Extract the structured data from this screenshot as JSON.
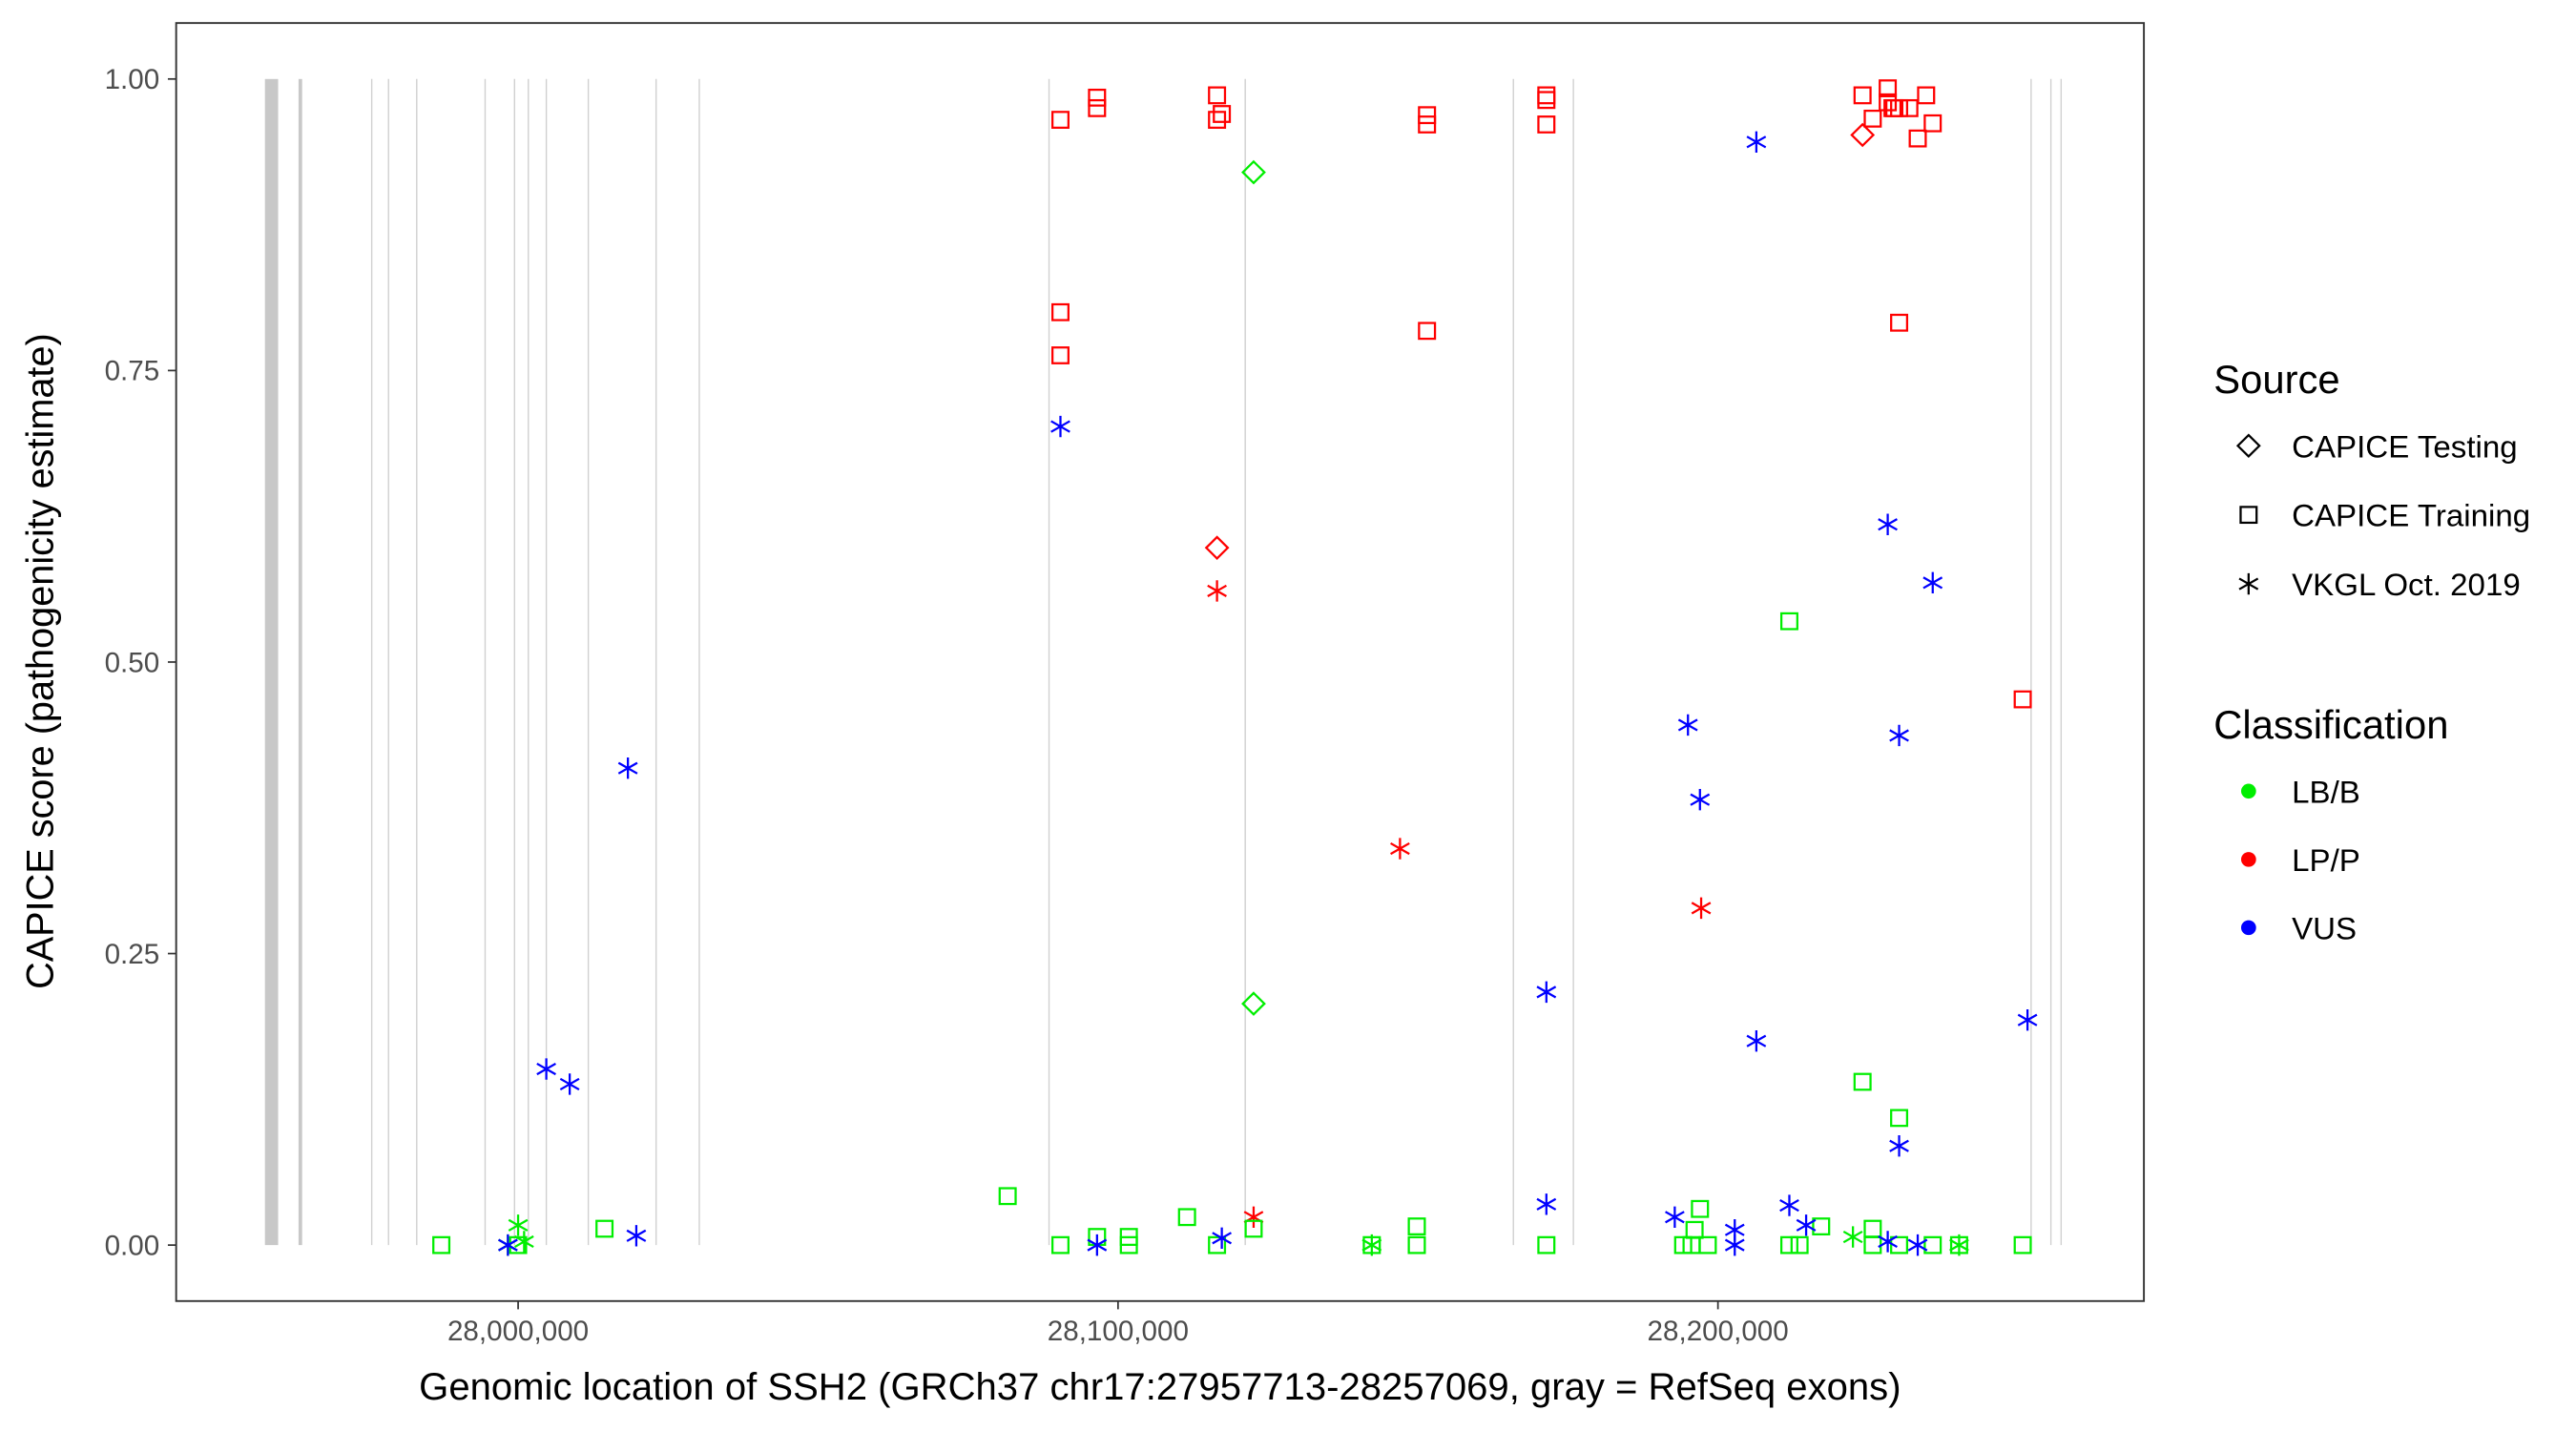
{
  "chart_data": {
    "type": "scatter",
    "xlabel": "Genomic location of SSH2 (GRCh37 chr17:27957713-28257069, gray = RefSeq exons)",
    "ylabel": "CAPICE score (pathogenicity estimate)",
    "xlim": [
      27943000,
      28271000
    ],
    "ylim": [
      -0.048,
      1.048
    ],
    "grid": false,
    "xticks": [
      28000000,
      28100000,
      28200000
    ],
    "xtick_labels": [
      "28,000,000",
      "28,100,000",
      "28,200,000"
    ],
    "yticks": [
      0,
      0.25,
      0.5,
      0.75,
      1.0
    ],
    "ytick_labels": [
      "0.00",
      "0.25",
      "0.50",
      "0.75",
      "1.00"
    ],
    "exons": [
      [
        27957800,
        27960000
      ],
      [
        27963400,
        27964000
      ],
      27975600,
      27978400,
      27983100,
      27994500,
      27999400,
      28001700,
      28004700,
      28011700,
      28023000,
      28030200,
      28088500,
      28121200,
      28165900,
      28175900,
      28252200,
      28255500,
      28257200
    ],
    "legend_placement": "right",
    "legend": {
      "source_title": "Source",
      "sources": [
        {
          "key": "testing",
          "label": "CAPICE Testing",
          "shape": "diamond"
        },
        {
          "key": "training",
          "label": "CAPICE Training",
          "shape": "square"
        },
        {
          "key": "vkgl",
          "label": "VKGL Oct. 2019",
          "shape": "asterisk"
        }
      ],
      "class_title": "Classification",
      "classes": [
        {
          "key": "LB/B",
          "label": "LB/B",
          "color": "#00ee00"
        },
        {
          "key": "LP/P",
          "label": "LP/P",
          "color": "#ff0000"
        },
        {
          "key": "VUS",
          "label": "VUS",
          "color": "#0000ff"
        }
      ]
    },
    "series": [
      {
        "source": "training",
        "class": "LP/P",
        "points": [
          [
            28090400,
            0.965
          ],
          [
            28096500,
            0.984
          ],
          [
            28096500,
            0.975
          ],
          [
            28116500,
            0.986
          ],
          [
            28116500,
            0.965
          ],
          [
            28117300,
            0.97
          ],
          [
            28151500,
            0.969
          ],
          [
            28151500,
            0.961
          ],
          [
            28171400,
            0.986
          ],
          [
            28171400,
            0.982
          ],
          [
            28171400,
            0.961
          ],
          [
            28090400,
            0.8
          ],
          [
            28090400,
            0.763
          ],
          [
            28151500,
            0.784
          ],
          [
            28224100,
            0.986
          ],
          [
            28225800,
            0.966
          ],
          [
            28228300,
            0.992
          ],
          [
            28228300,
            0.98
          ],
          [
            28229100,
            0.975
          ],
          [
            28229400,
            0.975
          ],
          [
            28230200,
            0.975
          ],
          [
            28231900,
            0.975
          ],
          [
            28234700,
            0.986
          ],
          [
            28233300,
            0.949
          ],
          [
            28235800,
            0.962
          ],
          [
            28230200,
            0.791
          ],
          [
            28250800,
            0.468
          ]
        ]
      },
      {
        "source": "testing",
        "class": "LP/P",
        "points": [
          [
            28224100,
            0.952
          ],
          [
            28116500,
            0.598
          ]
        ]
      },
      {
        "source": "vkgl",
        "class": "LP/P",
        "points": [
          [
            28116500,
            0.561
          ],
          [
            28147000,
            0.34
          ],
          [
            28197200,
            0.289
          ],
          [
            28122600,
            0.024
          ]
        ]
      },
      {
        "source": "testing",
        "class": "LB/B",
        "points": [
          [
            28122600,
            0.92
          ],
          [
            28122600,
            0.207
          ]
        ]
      },
      {
        "source": "training",
        "class": "LB/B",
        "points": [
          [
            27987200,
            0
          ],
          [
            28000000,
            0
          ],
          [
            28014400,
            0.014
          ],
          [
            28081600,
            0.042
          ],
          [
            28090400,
            0
          ],
          [
            28096500,
            0.007
          ],
          [
            28101800,
            0.007
          ],
          [
            28101800,
            0
          ],
          [
            28111500,
            0.024
          ],
          [
            28116500,
            0
          ],
          [
            28122600,
            0.014
          ],
          [
            28142300,
            0
          ],
          [
            28149800,
            0.016
          ],
          [
            28149800,
            0
          ],
          [
            28171400,
            0
          ],
          [
            28194200,
            0
          ],
          [
            28195600,
            0
          ],
          [
            28197000,
            0.031
          ],
          [
            28196100,
            0.013
          ],
          [
            28198300,
            0
          ],
          [
            28211900,
            0.535
          ],
          [
            28211900,
            0
          ],
          [
            28213600,
            0
          ],
          [
            28217200,
            0.016
          ],
          [
            28224100,
            0.14
          ],
          [
            28225800,
            0.014
          ],
          [
            28225800,
            0
          ],
          [
            28230200,
            0.109
          ],
          [
            28230200,
            0
          ],
          [
            28235800,
            0
          ],
          [
            28240200,
            0
          ],
          [
            28250800,
            0
          ]
        ]
      },
      {
        "source": "vkgl",
        "class": "LB/B",
        "points": [
          [
            28000000,
            0.017
          ],
          [
            28142300,
            0
          ],
          [
            28222500,
            0.007
          ],
          [
            28240200,
            0
          ],
          [
            27998300,
            0
          ],
          [
            28001000,
            0.003
          ]
        ]
      },
      {
        "source": "vkgl",
        "class": "VUS",
        "points": [
          [
            28206400,
            0.946
          ],
          [
            28090400,
            0.702
          ],
          [
            28228300,
            0.618
          ],
          [
            28235800,
            0.568
          ],
          [
            28195000,
            0.446
          ],
          [
            28230200,
            0.437
          ],
          [
            28197000,
            0.382
          ],
          [
            28018300,
            0.409
          ],
          [
            28171400,
            0.217
          ],
          [
            28206400,
            0.175
          ],
          [
            28251600,
            0.193
          ],
          [
            28004700,
            0.151
          ],
          [
            28008600,
            0.138
          ],
          [
            28230200,
            0.085
          ],
          [
            28171400,
            0.035
          ],
          [
            28192800,
            0.024
          ],
          [
            28211900,
            0.034
          ],
          [
            28202800,
            0.013
          ],
          [
            28214700,
            0.017
          ],
          [
            28019700,
            0.008
          ],
          [
            27998300,
            0
          ],
          [
            28096500,
            0
          ],
          [
            28117300,
            0.006
          ],
          [
            28202800,
            0
          ],
          [
            28228300,
            0.003
          ],
          [
            28233300,
            0
          ]
        ]
      }
    ]
  }
}
